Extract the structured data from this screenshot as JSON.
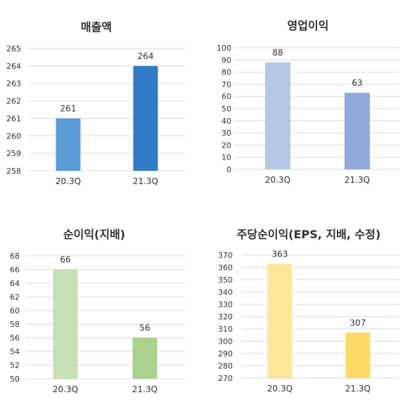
{
  "chart_data": [
    {
      "type": "bar",
      "title": "매출액",
      "categories": [
        "20.3Q",
        "21.3Q"
      ],
      "values": [
        261,
        264
      ],
      "value_labels": [
        "261",
        "264"
      ],
      "ylim": [
        258,
        265
      ],
      "yticks": [
        258,
        259,
        260,
        261,
        262,
        263,
        264,
        265
      ],
      "bar_colors": [
        "#5b9bd5",
        "#2f7bc6"
      ],
      "grid": true
    },
    {
      "type": "bar",
      "title": "영업이익",
      "categories": [
        "20.3Q",
        "21.3Q"
      ],
      "values": [
        88,
        63
      ],
      "value_labels": [
        "88",
        "63"
      ],
      "ylim": [
        0,
        100
      ],
      "yticks": [
        0,
        10,
        20,
        30,
        40,
        50,
        60,
        70,
        80,
        90,
        100
      ],
      "bar_colors": [
        "#b4c7e7",
        "#8eaadb"
      ],
      "grid": true
    },
    {
      "type": "bar",
      "title": "순이익(지배)",
      "categories": [
        "20.3Q",
        "21.3Q"
      ],
      "values": [
        66,
        56
      ],
      "value_labels": [
        "66",
        "56"
      ],
      "ylim": [
        50,
        68
      ],
      "yticks": [
        50,
        52,
        54,
        56,
        58,
        60,
        62,
        64,
        66,
        68
      ],
      "bar_colors": [
        "#c5e0b4",
        "#a9d18e"
      ],
      "grid": true
    },
    {
      "type": "bar",
      "title": "주당순이익(EPS, 지배, 수정)",
      "categories": [
        "20.3Q",
        "21.3Q"
      ],
      "values": [
        363,
        307
      ],
      "value_labels": [
        "363",
        "307"
      ],
      "ylim": [
        270,
        370
      ],
      "yticks": [
        270,
        280,
        290,
        300,
        310,
        320,
        330,
        340,
        350,
        360,
        370
      ],
      "bar_colors": [
        "#ffe699",
        "#ffd966"
      ],
      "grid": true
    }
  ]
}
